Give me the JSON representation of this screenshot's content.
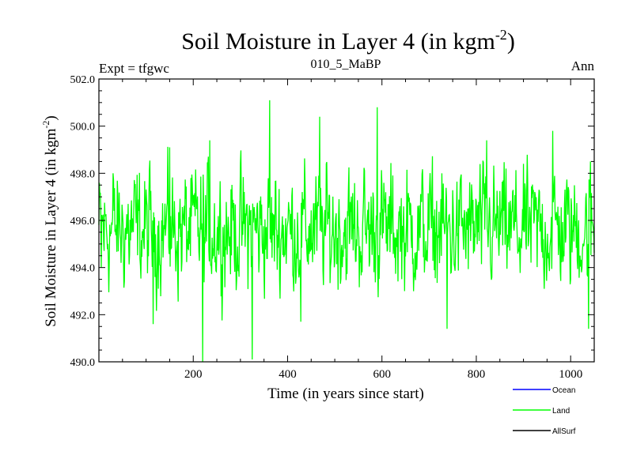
{
  "chart_data": {
    "type": "line",
    "title": "Soil Moisture in Layer 4 (in kgm",
    "title_sup": "-2",
    "title_close": ")",
    "subtitle_left": "Expt = tfgwc",
    "subtitle_center": "010_5_MaBP",
    "subtitle_right": "Ann",
    "xlabel": "Time (in years since start)",
    "ylabel": "Soil Moisture in Layer 4 (in kgm",
    "ylabel_sup": "-2",
    "ylabel_close": ")",
    "xlim": [
      0,
      1050
    ],
    "ylim": [
      490.0,
      502.0
    ],
    "xticks": [
      200,
      400,
      600,
      800,
      1000
    ],
    "xtick_labels": [
      "200",
      "400",
      "600",
      "800",
      "1000"
    ],
    "yticks": [
      490.0,
      492.0,
      494.0,
      496.0,
      498.0,
      500.0,
      502.0
    ],
    "ytick_labels": [
      "490.0",
      "492.0",
      "494.0",
      "496.0",
      "498.0",
      "500.0",
      "502.0"
    ],
    "grid": false,
    "legend": [
      {
        "name": "Ocean",
        "color": "#0000ff"
      },
      {
        "name": "Land",
        "color": "#00ff00"
      },
      {
        "name": "AllSurf",
        "color": "#000000"
      }
    ],
    "series": [
      {
        "name": "Land",
        "color": "#00ff00",
        "x_start": 0,
        "x_step": 1,
        "mean": 495.6,
        "spread": 1.4,
        "values_note": "annual series, ~1050 points; key extremes listed",
        "extremes": [
          {
            "x": 5,
            "y": 494.0
          },
          {
            "x": 30,
            "y": 498.0
          },
          {
            "x": 115,
            "y": 491.6
          },
          {
            "x": 150,
            "y": 499.1
          },
          {
            "x": 220,
            "y": 490.0
          },
          {
            "x": 235,
            "y": 499.4
          },
          {
            "x": 325,
            "y": 490.1
          },
          {
            "x": 362,
            "y": 501.1
          },
          {
            "x": 428,
            "y": 491.7
          },
          {
            "x": 468,
            "y": 500.4
          },
          {
            "x": 590,
            "y": 500.8
          },
          {
            "x": 738,
            "y": 491.4
          },
          {
            "x": 822,
            "y": 499.4
          },
          {
            "x": 962,
            "y": 499.8
          },
          {
            "x": 1038,
            "y": 491.4
          },
          {
            "x": 1042,
            "y": 498.5
          }
        ]
      }
    ]
  }
}
